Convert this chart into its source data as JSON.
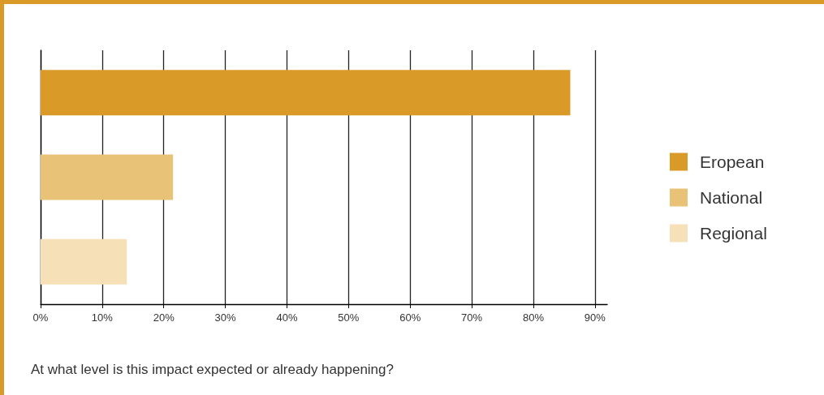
{
  "chart_data": {
    "type": "bar",
    "orientation": "horizontal",
    "xlabel": "At what level is this impact expected or already happening?",
    "categories": [
      null,
      null,
      null
    ],
    "series": [
      {
        "name": "Eropean",
        "color": "#da9a27",
        "values": [
          86,
          null,
          null
        ]
      },
      {
        "name": "National",
        "color": "#e8c277",
        "values": [
          null,
          21.5,
          null
        ]
      },
      {
        "name": "Regional",
        "color": "#f5e0b8",
        "values": [
          null,
          null,
          14
        ]
      }
    ],
    "xlim": [
      0,
      92
    ],
    "xticks": [
      {
        "value": 0,
        "label": "0%"
      },
      {
        "value": 10,
        "label": "10%"
      },
      {
        "value": 20,
        "label": "20%"
      },
      {
        "value": 30,
        "label": "30%"
      },
      {
        "value": 40,
        "label": "40%"
      },
      {
        "value": 50,
        "label": "50%"
      },
      {
        "value": 60,
        "label": "60%"
      },
      {
        "value": 70,
        "label": "70%"
      },
      {
        "value": 80,
        "label": "80%"
      },
      {
        "value": 90,
        "label": "90%"
      }
    ],
    "grid": "x",
    "legend": "right"
  }
}
